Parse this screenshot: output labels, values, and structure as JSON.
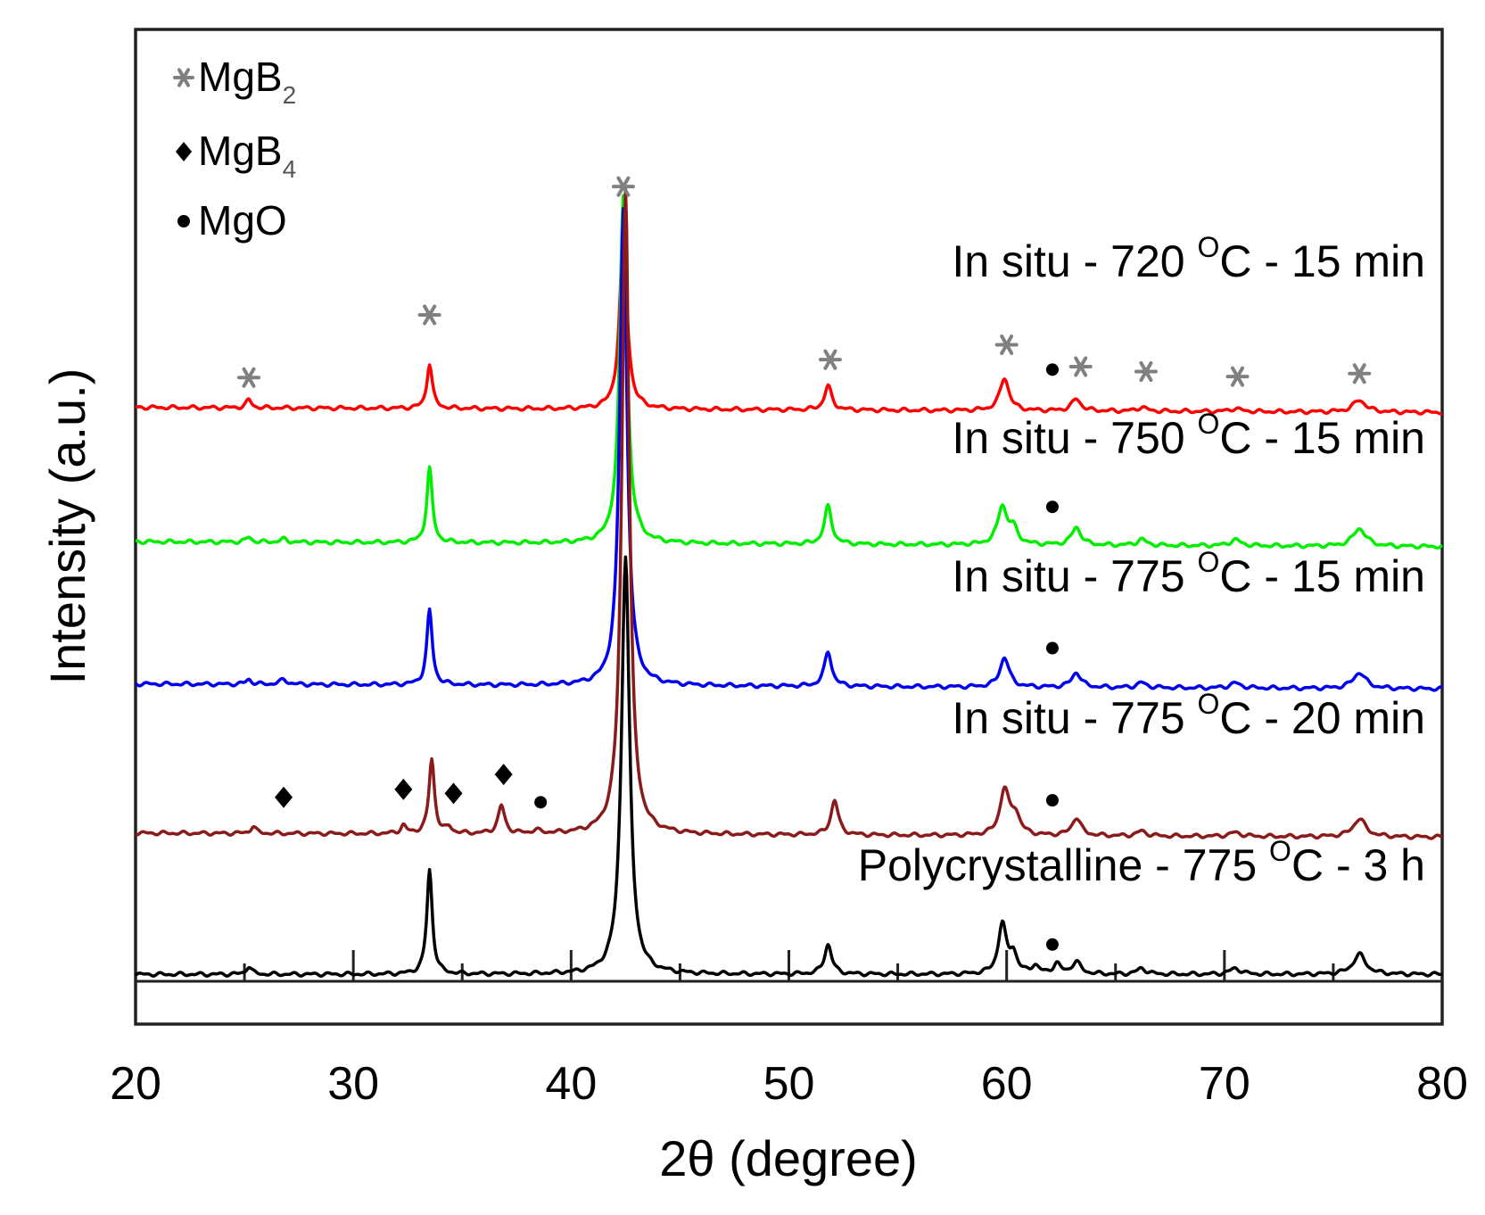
{
  "chart_data": {
    "type": "line",
    "title": "",
    "xlabel": "2θ (degree)",
    "ylabel": "Intensity (a.u.)",
    "xlim": [
      20,
      80
    ],
    "ylim": [
      0,
      100
    ],
    "x_ticks": [
      20,
      30,
      40,
      50,
      60,
      70,
      80
    ],
    "x_tick_labels": [
      "20",
      "30",
      "40",
      "50",
      "60",
      "70",
      "80"
    ],
    "grid": false,
    "legend": [
      {
        "symbol": "*",
        "label": "MgB",
        "sub": "2",
        "color": "#808080"
      },
      {
        "symbol": "◆",
        "label": "MgB",
        "sub": "4",
        "color": "#000000"
      },
      {
        "symbol": "●",
        "label": "MgO",
        "sub": "",
        "color": "#000000"
      }
    ],
    "series": [
      {
        "name": "In situ - 720 °C - 15 min",
        "label_pre": "In situ - 720 ",
        "label_sup": "O",
        "label_post": "C - 15 min",
        "color": "#ff0000",
        "baseline": 62.0,
        "tilt": -0.5,
        "peaks": [
          [
            25.2,
            0.8,
            0.15
          ],
          [
            33.5,
            4.5,
            0.15
          ],
          [
            42.4,
            18,
            0.2
          ],
          [
            51.8,
            2.4,
            0.2
          ],
          [
            59.9,
            3.3,
            0.25
          ],
          [
            63.2,
            1.2,
            0.25
          ],
          [
            66.2,
            0.4,
            0.25
          ],
          [
            70.5,
            0.3,
            0.3
          ],
          [
            76.2,
            1.2,
            0.35
          ]
        ]
      },
      {
        "name": "In situ - 750 °C - 15 min",
        "label_pre": "In situ - 750 ",
        "label_sup": "O",
        "label_post": "C - 15 min",
        "color": "#00ee00",
        "baseline": 48.5,
        "tilt": -0.5,
        "peaks": [
          [
            25.2,
            0.5,
            0.15
          ],
          [
            26.8,
            0.3,
            0.2
          ],
          [
            33.5,
            7.5,
            0.15
          ],
          [
            42.4,
            35,
            0.2
          ],
          [
            51.8,
            3.8,
            0.2
          ],
          [
            59.8,
            3.8,
            0.25
          ],
          [
            60.3,
            1.5,
            0.25
          ],
          [
            63.2,
            1.8,
            0.25
          ],
          [
            66.2,
            0.6,
            0.25
          ],
          [
            70.5,
            0.6,
            0.3
          ],
          [
            76.2,
            1.8,
            0.35
          ]
        ]
      },
      {
        "name": "In situ - 775 °C - 15 min",
        "label_pre": "In situ - 775 ",
        "label_sup": "O",
        "label_post": "C - 15 min",
        "color": "#0000ee",
        "baseline": 34.2,
        "tilt": -0.5,
        "peaks": [
          [
            25.2,
            0.5,
            0.15
          ],
          [
            26.8,
            0.5,
            0.2
          ],
          [
            33.5,
            7.5,
            0.15
          ],
          [
            42.4,
            48,
            0.2
          ],
          [
            51.8,
            3.5,
            0.2
          ],
          [
            59.9,
            3.0,
            0.25
          ],
          [
            63.2,
            1.5,
            0.25
          ],
          [
            66.2,
            0.5,
            0.25
          ],
          [
            70.5,
            0.5,
            0.3
          ],
          [
            76.2,
            1.6,
            0.35
          ]
        ]
      },
      {
        "name": "In situ - 775 °C - 20 min",
        "label_pre": "In situ - 775 ",
        "label_sup": "O",
        "label_post": "C - 20 min",
        "color": "#8b1a1a",
        "baseline": 19.2,
        "tilt": -0.4,
        "peaks": [
          [
            25.4,
            0.7,
            0.15
          ],
          [
            32.3,
            0.8,
            0.15
          ],
          [
            33.6,
            7.5,
            0.15
          ],
          [
            34.4,
            0.6,
            0.15
          ],
          [
            36.8,
            2.8,
            0.18
          ],
          [
            38.4,
            0.3,
            0.2
          ],
          [
            42.5,
            65,
            0.2
          ],
          [
            52.1,
            3.5,
            0.2
          ],
          [
            59.9,
            4.5,
            0.25
          ],
          [
            60.4,
            2.0,
            0.25
          ],
          [
            63.2,
            1.8,
            0.25
          ],
          [
            66.2,
            0.5,
            0.25
          ],
          [
            70.5,
            0.4,
            0.3
          ],
          [
            76.2,
            1.8,
            0.35
          ]
        ]
      },
      {
        "name": "Polycrystalline - 775 °C - 3 h",
        "label_pre": "Polycrystalline - 775 ",
        "label_sup": "O",
        "label_post": "C - 3 h",
        "color": "#000000",
        "baseline": 5.0,
        "tilt": 0,
        "peaks": [
          [
            25.2,
            0.8,
            0.15
          ],
          [
            33.5,
            10.5,
            0.15
          ],
          [
            42.5,
            42,
            0.22
          ],
          [
            51.8,
            3.0,
            0.2
          ],
          [
            59.8,
            5.0,
            0.22
          ],
          [
            60.3,
            2.0,
            0.2
          ],
          [
            61.3,
            0.8,
            0.2
          ],
          [
            62.3,
            1.0,
            0.2
          ],
          [
            63.2,
            1.2,
            0.25
          ],
          [
            66.2,
            0.6,
            0.25
          ],
          [
            70.5,
            0.6,
            0.3
          ],
          [
            76.2,
            2.0,
            0.35
          ]
        ]
      }
    ],
    "annotations": [
      {
        "symbol": "*",
        "x": 25.2,
        "y": 65.0,
        "color": "#808080"
      },
      {
        "symbol": "*",
        "x": 33.5,
        "y": 71.3,
        "color": "#808080"
      },
      {
        "symbol": "*",
        "x": 42.4,
        "y": 84.2,
        "color": "#808080"
      },
      {
        "symbol": "*",
        "x": 51.9,
        "y": 66.8,
        "color": "#808080"
      },
      {
        "symbol": "*",
        "x": 60.0,
        "y": 68.3,
        "color": "#808080"
      },
      {
        "symbol": "●",
        "x": 62.1,
        "y": 65.8,
        "color": "#000000"
      },
      {
        "symbol": "*",
        "x": 63.4,
        "y": 66.1,
        "color": "#808080"
      },
      {
        "symbol": "*",
        "x": 66.4,
        "y": 65.6,
        "color": "#808080"
      },
      {
        "symbol": "*",
        "x": 70.6,
        "y": 65.1,
        "color": "#808080"
      },
      {
        "symbol": "*",
        "x": 76.2,
        "y": 65.4,
        "color": "#808080"
      },
      {
        "symbol": "●",
        "x": 62.1,
        "y": 52.0,
        "color": "#000000"
      },
      {
        "symbol": "●",
        "x": 62.1,
        "y": 37.8,
        "color": "#000000"
      },
      {
        "symbol": "◆",
        "x": 26.8,
        "y": 22.8,
        "color": "#000000"
      },
      {
        "symbol": "◆",
        "x": 32.3,
        "y": 23.6,
        "color": "#000000"
      },
      {
        "symbol": "◆",
        "x": 34.6,
        "y": 23.2,
        "color": "#000000"
      },
      {
        "symbol": "◆",
        "x": 36.9,
        "y": 25.1,
        "color": "#000000"
      },
      {
        "symbol": "●",
        "x": 38.6,
        "y": 22.3,
        "color": "#000000"
      },
      {
        "symbol": "●",
        "x": 62.1,
        "y": 22.5,
        "color": "#000000"
      },
      {
        "symbol": "●",
        "x": 62.1,
        "y": 8.0,
        "color": "#000000"
      }
    ]
  }
}
